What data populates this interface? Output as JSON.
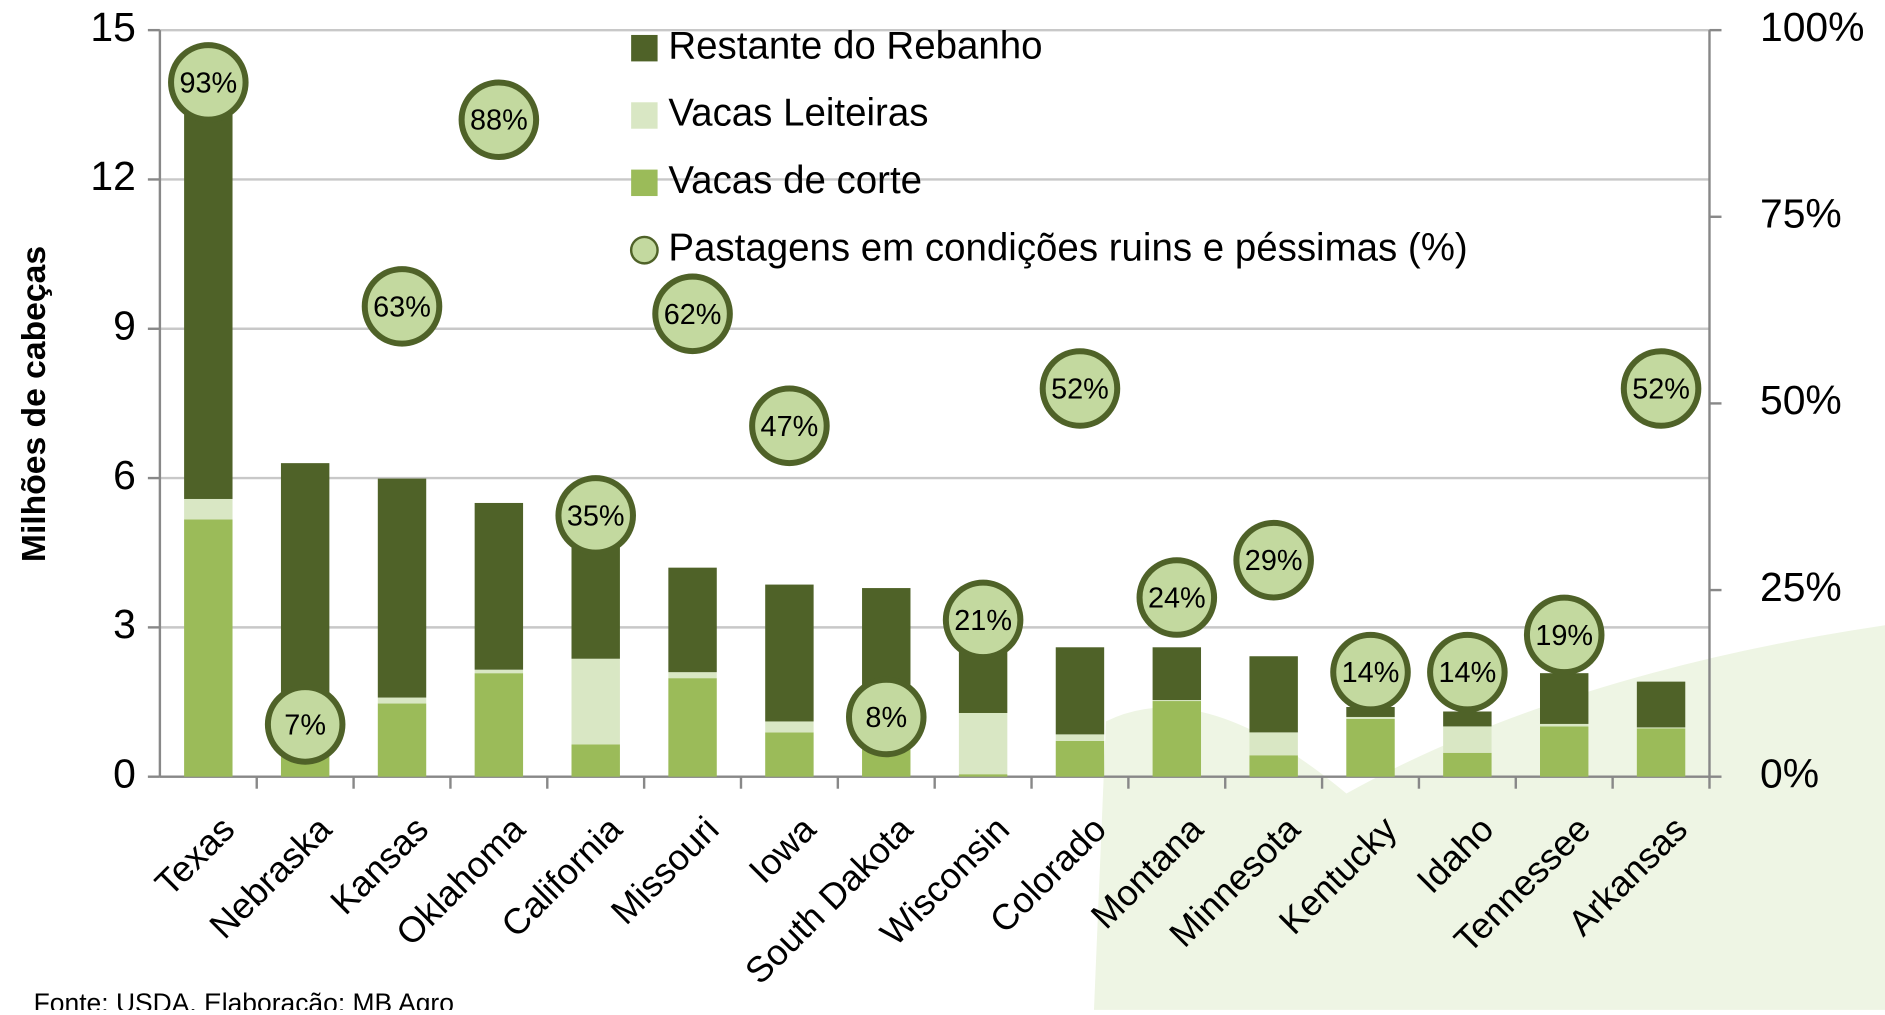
{
  "chart_data": {
    "type": "bar",
    "y_label": "Milhões de cabeças",
    "source": "Fonte: USDA. Elaboração: MB Agro",
    "categories": [
      "Texas",
      "Nebraska",
      "Kansas",
      "Oklahoma",
      "California",
      "Missouri",
      "Iowa",
      "South Dakota",
      "Wisconsin",
      "Colorado",
      "Montana",
      "Minnesota",
      "Kentucky",
      "Idaho",
      "Tennessee",
      "Arkansas"
    ],
    "series": [
      {
        "name": "Vacas de corte",
        "color": "#9bbb59",
        "values": [
          5.17,
          0.6,
          1.47,
          2.08,
          0.65,
          1.98,
          0.89,
          0.55,
          0.05,
          0.72,
          1.52,
          0.43,
          1.16,
          0.48,
          1.01,
          0.97
        ]
      },
      {
        "name": "Vacas Leiteiras",
        "color": "#d9e7c4",
        "values": [
          0.41,
          0.05,
          0.12,
          0.07,
          1.72,
          0.12,
          0.22,
          0.05,
          1.23,
          0.13,
          0.02,
          0.46,
          0.04,
          0.53,
          0.05,
          0.02
        ]
      },
      {
        "name": "Restante do Rebanho",
        "color": "#4f6228",
        "values": [
          7.8,
          5.65,
          4.4,
          3.35,
          2.53,
          2.1,
          2.75,
          3.19,
          1.4,
          1.75,
          1.06,
          1.53,
          0.2,
          0.3,
          1.02,
          0.92
        ]
      },
      {
        "name": "Pastagens em condições ruins e péssimas (%)",
        "color": "#c3d99f",
        "axis": "y2",
        "values": [
          93,
          7,
          63,
          88,
          35,
          62,
          47,
          8,
          21,
          52,
          24,
          29,
          14,
          14,
          19,
          52
        ],
        "value_labels": [
          "93%",
          "7%",
          "63%",
          "88%",
          "35%",
          "62%",
          "47%",
          "8%",
          "21%",
          "52%",
          "24%",
          "29%",
          "14%",
          "14%",
          "19%",
          "52%"
        ]
      }
    ],
    "ylim": [
      0,
      15
    ],
    "yticks": [
      0,
      3,
      6,
      9,
      12,
      15
    ],
    "y2lim": [
      0,
      100
    ],
    "y2ticks": [
      {
        "value": 0,
        "label": "0%"
      },
      {
        "value": 25,
        "label": "25%"
      },
      {
        "value": 50,
        "label": "50%"
      },
      {
        "value": 75,
        "label": "75%"
      },
      {
        "value": 100,
        "label": "100%"
      }
    ],
    "grid": true,
    "legend": "top"
  }
}
